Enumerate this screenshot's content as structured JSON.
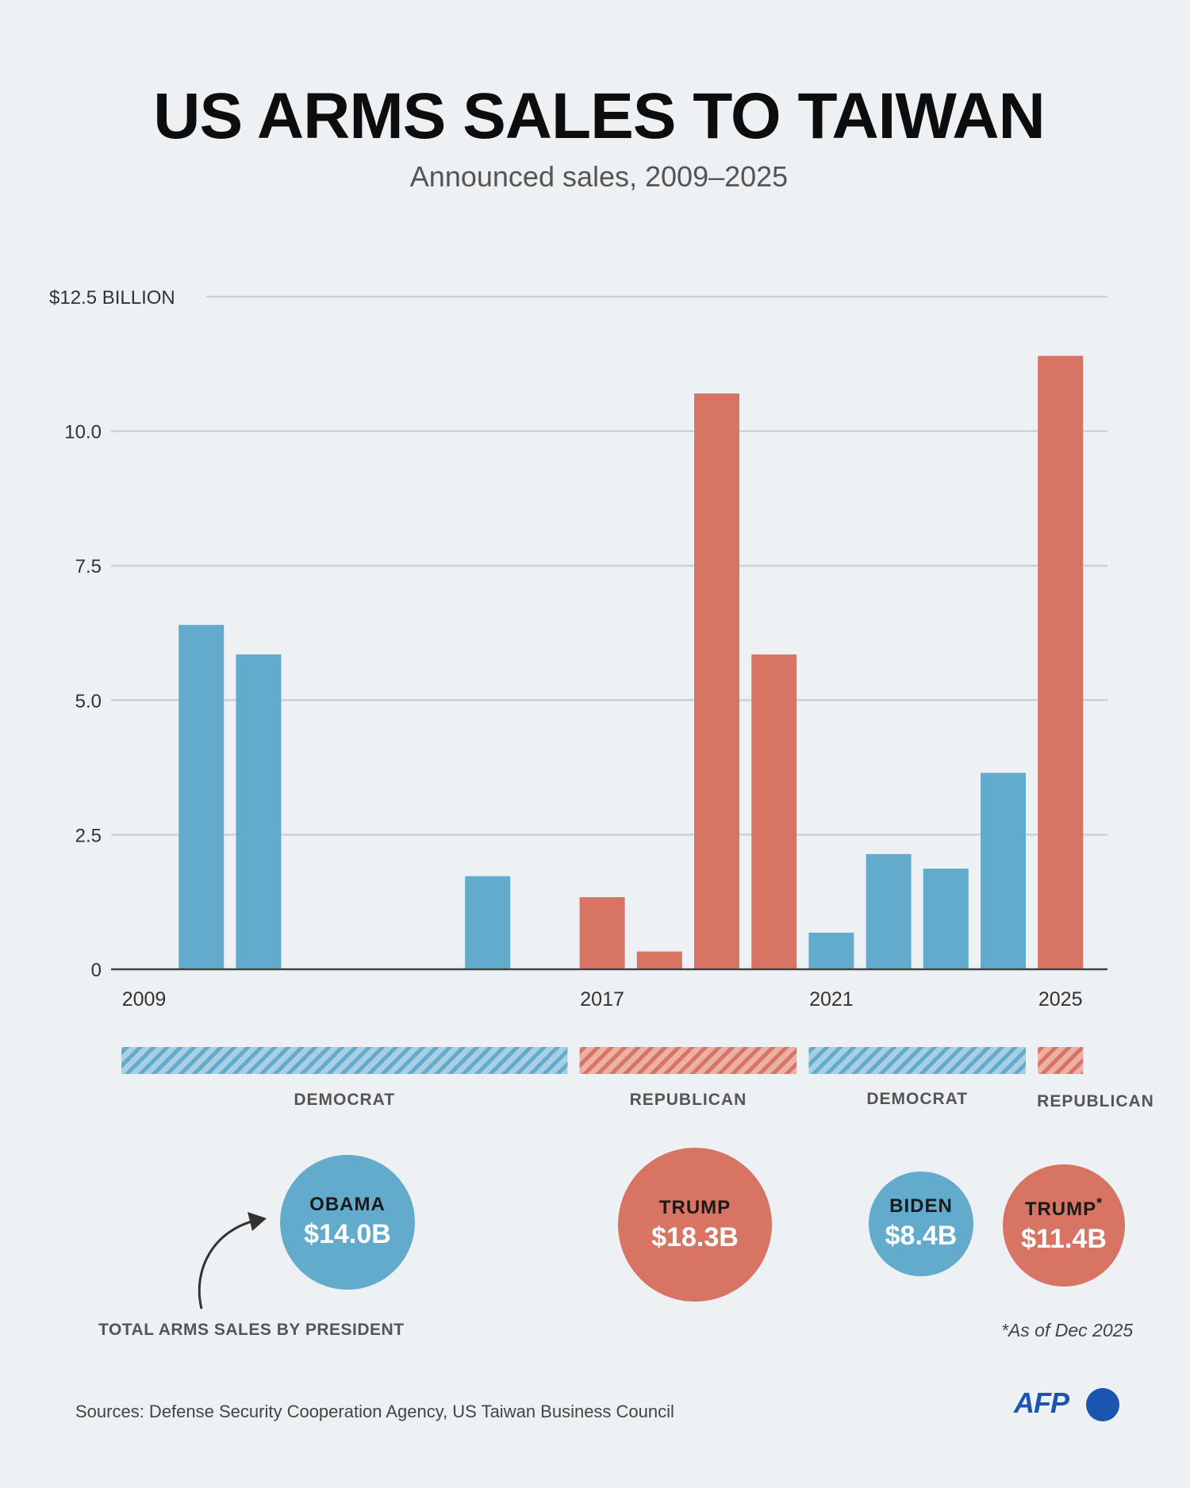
{
  "header": {
    "title": "US ARMS SALES TO TAIWAN",
    "subtitle": "Announced sales, 2009–2025"
  },
  "colors": {
    "democrat": "#62abcc",
    "republican": "#d77464",
    "background": "#edf1f3",
    "grid": "#cdd1d4",
    "axis": "#444444",
    "afp": "#1a55b0"
  },
  "chart_data": {
    "type": "bar",
    "title": "US ARMS SALES TO TAIWAN",
    "subtitle": "Announced sales, 2009–2025",
    "ylabel": "",
    "xlabel": "",
    "ylim": [
      0,
      12.5
    ],
    "y_ticks": [
      {
        "value": 0,
        "label": "0"
      },
      {
        "value": 2.5,
        "label": "2.5"
      },
      {
        "value": 5,
        "label": "5.0"
      },
      {
        "value": 7.5,
        "label": "7.5"
      },
      {
        "value": 10,
        "label": "10.0"
      },
      {
        "value": 12.5,
        "label": "$12.5 BILLION"
      }
    ],
    "grid": true,
    "categories": [
      2009,
      2010,
      2011,
      2012,
      2013,
      2014,
      2015,
      2016,
      2017,
      2018,
      2019,
      2020,
      2021,
      2022,
      2023,
      2024,
      2025
    ],
    "x_tick_labels": [
      "2009",
      "2017",
      "2021",
      "2025"
    ],
    "values": [
      0,
      6.4,
      5.85,
      0,
      0,
      0,
      1.73,
      0,
      1.34,
      0.33,
      10.7,
      5.85,
      0.68,
      2.14,
      1.87,
      3.65,
      11.4
    ],
    "party": [
      "D",
      "D",
      "D",
      "D",
      "D",
      "D",
      "D",
      "D",
      "R",
      "R",
      "R",
      "R",
      "D",
      "D",
      "D",
      "D",
      "R"
    ],
    "party_periods": [
      {
        "label": "DEMOCRAT",
        "party": "D",
        "start": 2009,
        "end": 2016
      },
      {
        "label": "REPUBLICAN",
        "party": "R",
        "start": 2017,
        "end": 2020
      },
      {
        "label": "DEMOCRAT",
        "party": "D",
        "start": 2021,
        "end": 2024
      },
      {
        "label": "REPUBLICAN",
        "party": "R",
        "start": 2025,
        "end": 2025
      }
    ]
  },
  "totals": {
    "label": "TOTAL ARMS SALES BY PRESIDENT",
    "presidents": [
      {
        "name": "OBAMA",
        "mark": "",
        "value": "$14.0B",
        "amount": 14.0,
        "party": "D"
      },
      {
        "name": "TRUMP",
        "mark": "",
        "value": "$18.3B",
        "amount": 18.3,
        "party": "R"
      },
      {
        "name": "BIDEN",
        "mark": "",
        "value": "$8.4B",
        "amount": 8.4,
        "party": "D"
      },
      {
        "name": "TRUMP",
        "mark": "*",
        "value": "$11.4B",
        "amount": 11.4,
        "party": "R"
      }
    ]
  },
  "footnote": "*As of Dec 2025",
  "source": "Sources: Defense Security Cooperation Agency, US Taiwan Business Council",
  "logo": {
    "text": "AFP"
  }
}
